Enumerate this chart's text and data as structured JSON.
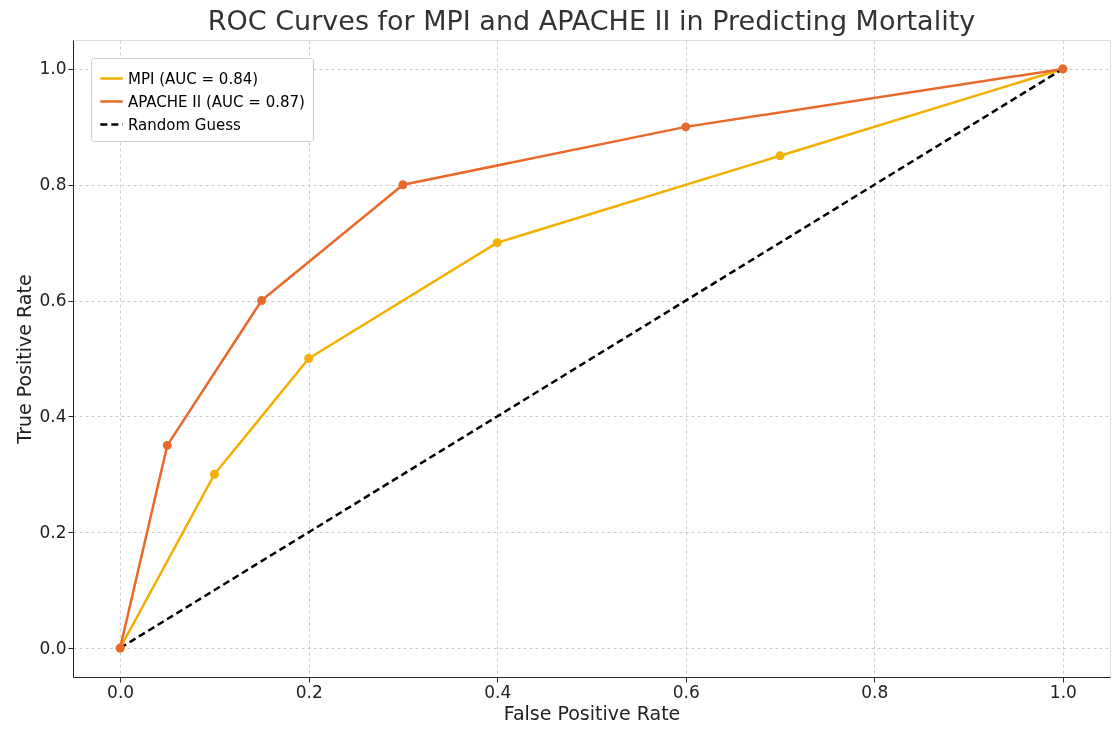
{
  "chart_data": {
    "type": "line",
    "title": "ROC Curves for MPI and APACHE II in Predicting Mortality",
    "xlabel": "False Positive Rate",
    "ylabel": "True Positive Rate",
    "series": [
      {
        "name": "MPI (AUC = 0.84)",
        "color": "#f4b000",
        "x": [
          0,
          0.1,
          0.2,
          0.4,
          0.7,
          1
        ],
        "values": [
          0,
          0.3,
          0.5,
          0.7,
          0.85,
          1
        ],
        "marker": "circle",
        "line_style": "solid"
      },
      {
        "name": "APACHE II (AUC = 0.87)",
        "color": "#e8692a",
        "x": [
          0,
          0.05,
          0.15,
          0.3,
          0.6,
          1
        ],
        "values": [
          0,
          0.35,
          0.6,
          0.8,
          0.9,
          1
        ],
        "marker": "circle",
        "line_style": "solid"
      },
      {
        "name": "Random Guess",
        "color": "#000000",
        "x": [
          0,
          1
        ],
        "values": [
          0,
          1
        ],
        "marker": "none",
        "line_style": "dashed"
      }
    ],
    "xlim": [
      -0.05,
      1.05
    ],
    "ylim": [
      -0.05,
      1.05
    ],
    "xticks": [
      {
        "value": 0,
        "label": "0.0"
      },
      {
        "value": 0.2,
        "label": "0.2"
      },
      {
        "value": 0.4,
        "label": "0.4"
      },
      {
        "value": 0.6,
        "label": "0.6"
      },
      {
        "value": 0.8,
        "label": "0.8"
      },
      {
        "value": 1,
        "label": "1.0"
      }
    ],
    "yticks": [
      {
        "value": 0,
        "label": "0.0"
      },
      {
        "value": 0.2,
        "label": "0.2"
      },
      {
        "value": 0.4,
        "label": "0.4"
      },
      {
        "value": 0.6,
        "label": "0.6"
      },
      {
        "value": 0.8,
        "label": "0.8"
      },
      {
        "value": 1,
        "label": "1.0"
      }
    ],
    "grid": true,
    "legend": "top left"
  }
}
